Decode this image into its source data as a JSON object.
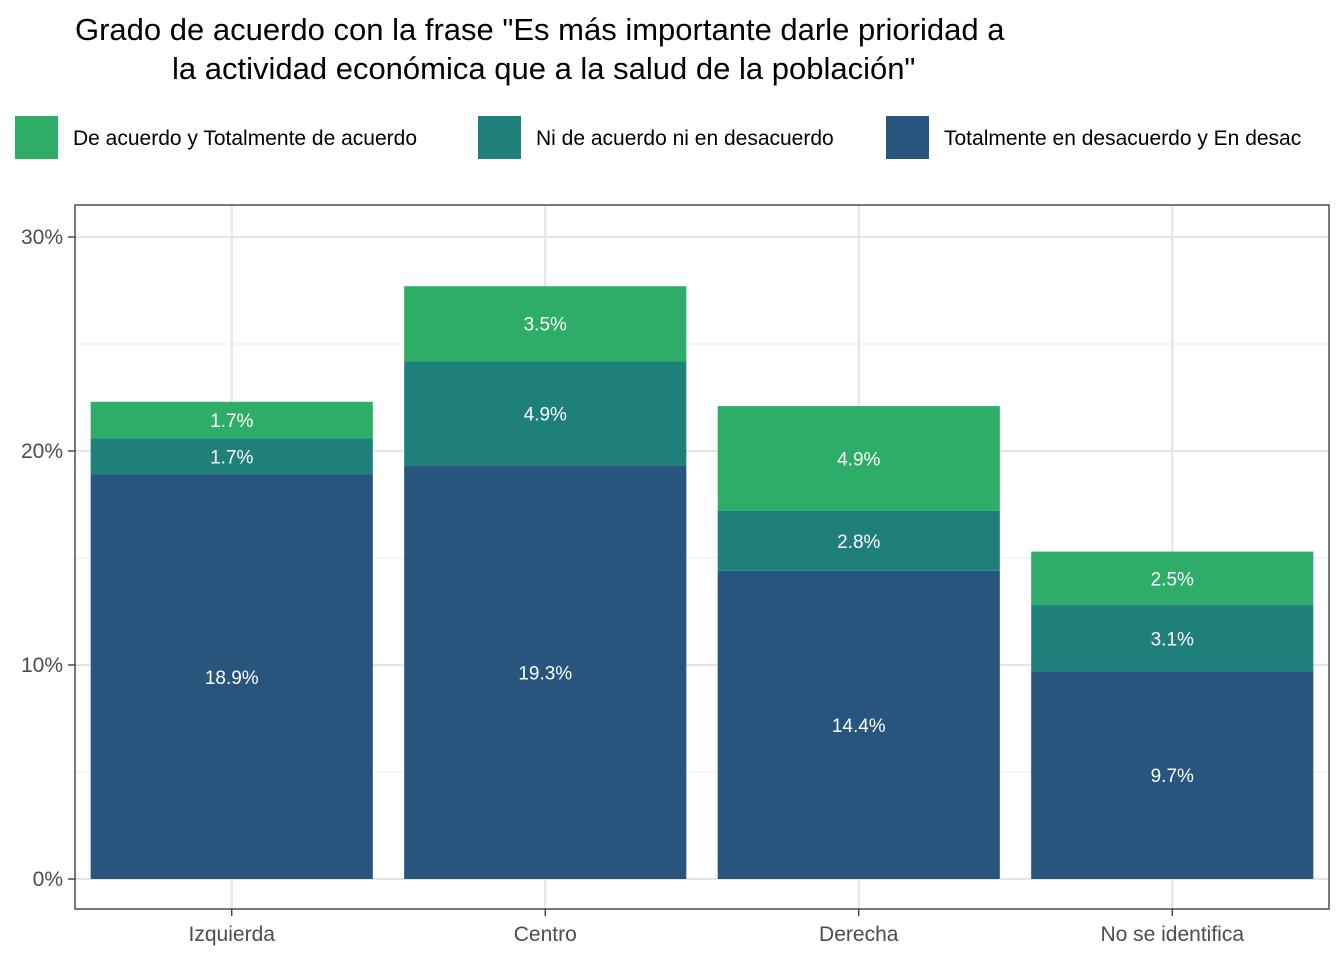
{
  "chart_data": {
    "type": "bar",
    "stacked": true,
    "title": "Grado de acuerdo con la frase \"Es más importante darle prioridad a la actividad económica que a la salud de la población\"",
    "title_lines": [
      "Grado de acuerdo con la frase \"Es más importante darle prioridad a",
      "la actividad económica que a la salud de la población\""
    ],
    "xlabel": "",
    "ylabel": "",
    "categories": [
      "Izquierda",
      "Centro",
      "Derecha",
      "No se identifica"
    ],
    "series": [
      {
        "name": "Totalmente en desacuerdo y En desacuerdo",
        "legend_label": "Totalmente en desacuerdo y En desac",
        "color": "#27557D",
        "values": [
          18.9,
          19.3,
          14.4,
          9.7
        ],
        "labels": [
          "18.9%",
          "19.3%",
          "14.4%",
          "9.7%"
        ]
      },
      {
        "name": "Ni de acuerdo ni en desacuerdo",
        "legend_label": "Ni de acuerdo ni en desacuerdo",
        "color": "#1F807B",
        "values": [
          1.7,
          4.9,
          2.8,
          3.1
        ],
        "labels": [
          "1.7%",
          "4.9%",
          "2.8%",
          "3.1%"
        ]
      },
      {
        "name": "De acuerdo y Totalmente de acuerdo",
        "legend_label": "De acuerdo y Totalmente de acuerdo",
        "color": "#2EAD68",
        "values": [
          1.7,
          3.5,
          4.9,
          2.5
        ],
        "labels": [
          "1.7%",
          "3.5%",
          "4.9%",
          "2.5%"
        ]
      }
    ],
    "legend_order": [
      2,
      1,
      0
    ],
    "legend_position": "top",
    "ylim": [
      0,
      31.5
    ],
    "yticks": [
      0,
      10,
      20,
      30
    ],
    "ytick_labels": [
      "0%",
      "10%",
      "20%",
      "30%"
    ],
    "grid": true
  }
}
